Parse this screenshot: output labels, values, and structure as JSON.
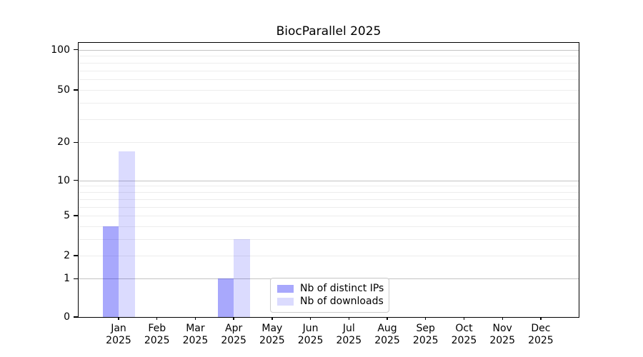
{
  "chart_data": {
    "type": "bar",
    "title": "BiocParallel 2025",
    "months": [
      "Jan",
      "Feb",
      "Mar",
      "Apr",
      "May",
      "Jun",
      "Jul",
      "Aug",
      "Sep",
      "Oct",
      "Nov",
      "Dec"
    ],
    "year_label": "2025",
    "categories": [
      "Jan 2025",
      "Feb 2025",
      "Mar 2025",
      "Apr 2025",
      "May 2025",
      "Jun 2025",
      "Jul 2025",
      "Aug 2025",
      "Sep 2025",
      "Oct 2025",
      "Nov 2025",
      "Dec 2025"
    ],
    "series": [
      {
        "name": "Nb of distinct IPs",
        "color": "rgba(0,0,245,0.34)",
        "color_on_white": "#a8a8f8",
        "values": [
          4,
          0,
          0,
          1,
          0,
          0,
          0,
          0,
          0,
          0,
          0,
          0
        ]
      },
      {
        "name": "Nb of downloads",
        "color": "rgba(0,0,245,0.14)",
        "color_on_white": "#dbdbfa",
        "values": [
          17,
          0,
          0,
          3,
          0,
          0,
          0,
          0,
          0,
          0,
          0,
          0
        ]
      }
    ],
    "y_axis": {
      "ticks": [
        0,
        1,
        2,
        5,
        10,
        20,
        50,
        100
      ],
      "major_gridlines": [
        1,
        10,
        100
      ],
      "minor_gridlines": [
        2,
        3,
        4,
        5,
        6,
        7,
        8,
        9,
        20,
        30,
        40,
        50,
        60,
        70,
        80,
        90
      ],
      "scale": "log10(value + 1.1)",
      "range": [
        0,
        114
      ]
    },
    "legend": {
      "position": "lower center",
      "items": [
        "Nb of distinct IPs",
        "Nb of downloads"
      ]
    },
    "colors": {
      "background": "#ffffff",
      "axis": "#000000",
      "text": "#000000",
      "major_grid": "#c3c3c3",
      "minor_grid": "#ededed",
      "legend_border": "#cccccc"
    }
  }
}
